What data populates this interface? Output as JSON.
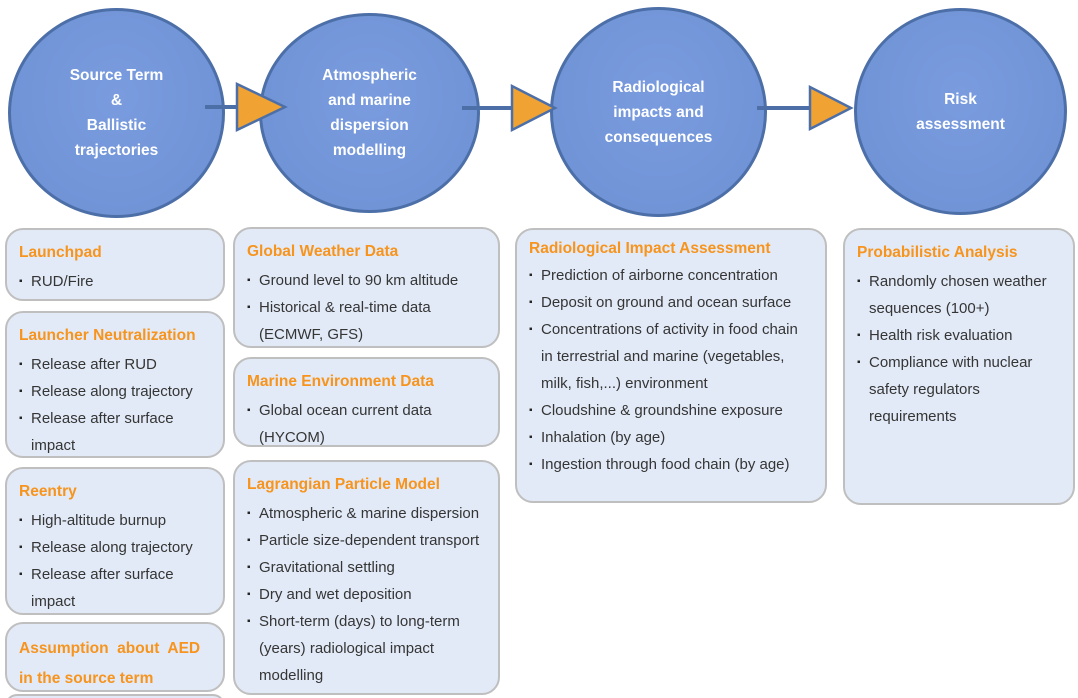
{
  "colors": {
    "stage_fill": "#7295d8",
    "stage_border": "#4d6fa8",
    "card_fill": "#e2eaf7",
    "card_border": "#bfbfbf",
    "heading_orange": "#f7941d",
    "arrow_fill": "#f0a232",
    "arrow_stroke": "#4d6fa8",
    "body_text": "#353535"
  },
  "icons": {
    "bullet": "▪",
    "arrow": "right-arrow"
  },
  "flow": {
    "stages": [
      {
        "label": "Source Term\n&\nBallistic\ntrajectories"
      },
      {
        "label": "Atmospheric\nand marine\ndispersion\nmodelling"
      },
      {
        "label": "Radiological\nimpacts and\nconsequences"
      },
      {
        "label": "Risk\nassessment"
      }
    ]
  },
  "columns": [
    {
      "boxes": [
        {
          "title": "Launchpad",
          "items": [
            "RUD/Fire"
          ]
        },
        {
          "title": "Launcher Neutralization",
          "items": [
            "Release after RUD",
            "Release along trajectory",
            "Release after surface impact"
          ]
        },
        {
          "title": "Reentry",
          "items": [
            "High-altitude burnup",
            "Release along trajectory",
            "Release after surface impact"
          ]
        },
        {
          "title": "Assumption  about  AED\nin the source term",
          "items": []
        }
      ]
    },
    {
      "boxes": [
        {
          "title": "Global Weather Data",
          "items": [
            "Ground level to 90 km altitude",
            "Historical & real-time data (ECMWF, GFS)"
          ]
        },
        {
          "title": "Marine Environment Data",
          "items": [
            "Global ocean current data (HYCOM)"
          ]
        },
        {
          "title": "Lagrangian Particle Model",
          "items": [
            "Atmospheric & marine dispersion",
            "Particle size-dependent transport",
            "Gravitational settling",
            "Dry and wet deposition",
            "Short-term (days) to long-term (years) radiological impact modelling"
          ]
        }
      ]
    },
    {
      "boxes": [
        {
          "title": "Radiological Impact Assessment",
          "items": [
            "Prediction of airborne concentration",
            "Deposit on ground and ocean surface",
            "Concentrations of activity in food chain in terrestrial and marine (vegetables, milk, fish,...) environment",
            "Cloudshine & groundshine exposure",
            "Inhalation (by age)",
            "Ingestion through food chain (by age)"
          ]
        }
      ]
    },
    {
      "boxes": [
        {
          "title": "Probabilistic Analysis",
          "items": [
            "Randomly chosen weather sequences  (100+)",
            "Health risk evaluation",
            "Compliance with nuclear safety regulators requirements"
          ]
        }
      ]
    }
  ]
}
